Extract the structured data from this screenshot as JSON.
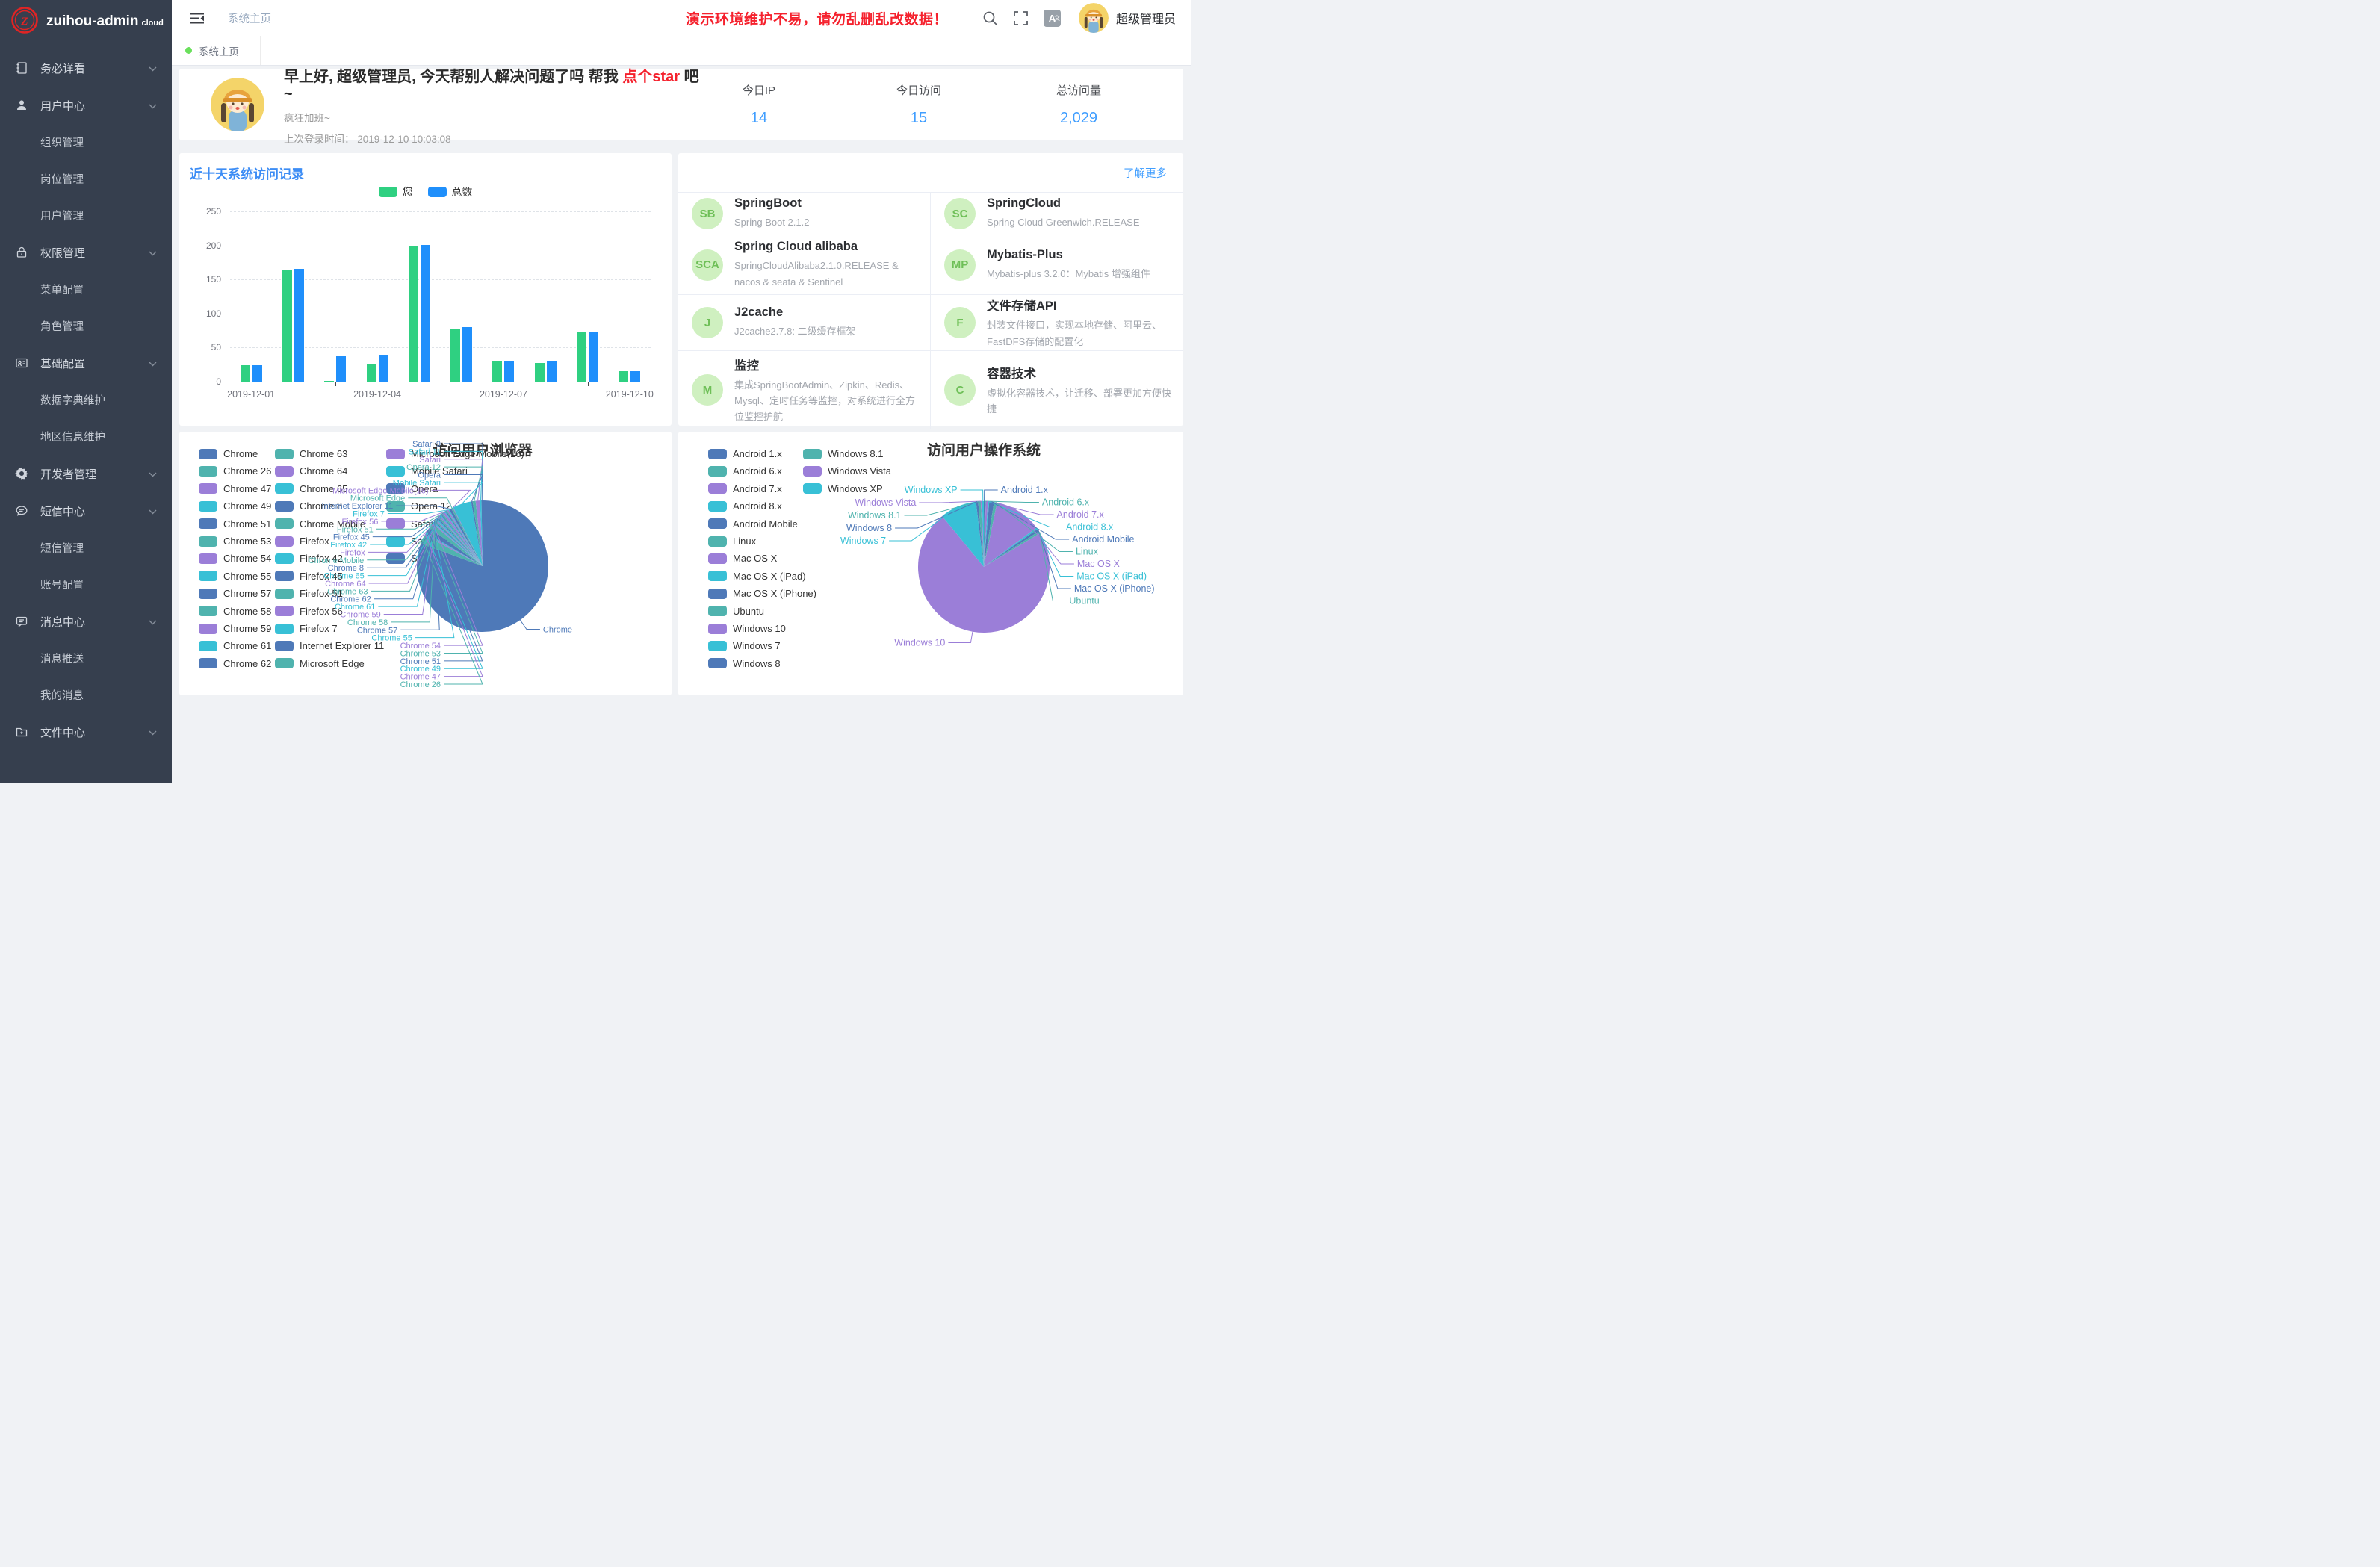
{
  "app": {
    "logo_letter": "Z",
    "title": "zuihou-admin",
    "title_suffix": "cloud"
  },
  "header": {
    "breadcrumb": "系统主页",
    "warning": "演示环境维护不易，请勿乱删乱改数据！",
    "username": "超级管理员",
    "icons": [
      "menu-fold-icon",
      "search-icon",
      "fullscreen-icon",
      "language-icon"
    ],
    "language_icon_text": "A文"
  },
  "tabs": [
    {
      "label": "系统主页",
      "active": true
    }
  ],
  "sidebar": {
    "items": [
      {
        "icon": "notebook-icon",
        "label": "务必详看",
        "children": []
      },
      {
        "icon": "user-icon",
        "label": "用户中心",
        "children": [
          "组织管理",
          "岗位管理",
          "用户管理"
        ]
      },
      {
        "icon": "lock-icon",
        "label": "权限管理",
        "children": [
          "菜单配置",
          "角色管理"
        ]
      },
      {
        "icon": "card-icon",
        "label": "基础配置",
        "children": [
          "数据字典维护",
          "地区信息维护"
        ]
      },
      {
        "icon": "gear-icon",
        "label": "开发者管理",
        "children": []
      },
      {
        "icon": "chat-icon",
        "label": "短信中心",
        "children": [
          "短信管理",
          "账号配置"
        ]
      },
      {
        "icon": "message-icon",
        "label": "消息中心",
        "children": [
          "消息推送",
          "我的消息"
        ]
      },
      {
        "icon": "folder-icon",
        "label": "文件中心",
        "children": []
      }
    ]
  },
  "greeting": {
    "title_prefix": "早上好, 超级管理员, 今天帮别人解决问题了吗 帮我 ",
    "star_link": "点个star",
    "title_suffix": " 吧~",
    "mood": "疯狂加班~",
    "last_login_label": "上次登录时间：",
    "last_login": "2019-12-10 10:03:08"
  },
  "stats": [
    {
      "label": "今日IP",
      "value": "14"
    },
    {
      "label": "今日访问",
      "value": "15"
    },
    {
      "label": "总访问量",
      "value": "2,029"
    }
  ],
  "bar_panel": {
    "title": "近十天系统访问记录",
    "chart_data": {
      "type": "bar",
      "categories": [
        "2019-12-01",
        "2019-12-02",
        "2019-12-03",
        "2019-12-04",
        "2019-12-05",
        "2019-12-06",
        "2019-12-07",
        "2019-12-08",
        "2019-12-09",
        "2019-12-10"
      ],
      "x_tick_labels_shown": [
        "2019-12-01",
        "2019-12-04",
        "2019-12-07",
        "2019-12-10"
      ],
      "series": [
        {
          "name": "您",
          "values": [
            24,
            165,
            1,
            25,
            198,
            78,
            31,
            27,
            72,
            15
          ]
        },
        {
          "name": "总数",
          "values": [
            24,
            166,
            38,
            40,
            201,
            80,
            31,
            31,
            72,
            15
          ]
        }
      ],
      "ylabel": "",
      "xlabel": "",
      "ylim": [
        0,
        250
      ],
      "y_ticks": [
        0,
        50,
        100,
        150,
        200,
        250
      ],
      "grid": "dashed"
    }
  },
  "tech_panel": {
    "more_link": "了解更多",
    "cards": [
      {
        "badge": "SB",
        "title": "SpringBoot",
        "desc": "Spring Boot 2.1.2"
      },
      {
        "badge": "SC",
        "title": "SpringCloud",
        "desc": "Spring Cloud Greenwich.RELEASE"
      },
      {
        "badge": "SCA",
        "title": "Spring Cloud alibaba",
        "desc": "SpringCloudAlibaba2.1.0.RELEASE & nacos & seata & Sentinel"
      },
      {
        "badge": "MP",
        "title": "Mybatis-Plus",
        "desc": "Mybatis-plus 3.2.0：Mybatis 增强组件"
      },
      {
        "badge": "J",
        "title": "J2cache",
        "desc": "J2cache2.7.8: 二级缓存框架"
      },
      {
        "badge": "F",
        "title": "文件存储API",
        "desc": "封装文件接口，实现本地存储、阿里云、FastDFS存储的配置化"
      },
      {
        "badge": "M",
        "title": "监控",
        "desc": "集成SpringBootAdmin、Zipkin、Redis、Mysql、定时任务等监控，对系统进行全方位监控护航"
      },
      {
        "badge": "C",
        "title": "容器技术",
        "desc": "虚拟化容器技术，让迁移、部署更加方便快捷"
      }
    ]
  },
  "browser_panel": {
    "title": "访问用户浏览器",
    "chart_data": {
      "type": "pie",
      "slices": [
        {
          "name": "Chrome",
          "value": 1526
        },
        {
          "name": "Chrome 26",
          "value": 42
        },
        {
          "name": "Chrome 47",
          "value": 9
        },
        {
          "name": "Chrome 49",
          "value": 5
        },
        {
          "name": "Chrome 51",
          "value": 26
        },
        {
          "name": "Chrome 53",
          "value": 24
        },
        {
          "name": "Chrome 54",
          "value": 5
        },
        {
          "name": "Chrome 55",
          "value": 6
        },
        {
          "name": "Chrome 57",
          "value": 5
        },
        {
          "name": "Chrome 58",
          "value": 5
        },
        {
          "name": "Chrome 59",
          "value": 5
        },
        {
          "name": "Chrome 61",
          "value": 6
        },
        {
          "name": "Chrome 62",
          "value": 6
        },
        {
          "name": "Chrome 63",
          "value": 7
        },
        {
          "name": "Chrome 64",
          "value": 6
        },
        {
          "name": "Chrome 65",
          "value": 5
        },
        {
          "name": "Chrome 8",
          "value": 4
        },
        {
          "name": "Chrome Mobile",
          "value": 7
        },
        {
          "name": "Firefox",
          "value": 10
        },
        {
          "name": "Firefox 42",
          "value": 4
        },
        {
          "name": "Firefox 45",
          "value": 5
        },
        {
          "name": "Firefox 51",
          "value": 4
        },
        {
          "name": "Firefox 56",
          "value": 6
        },
        {
          "name": "Firefox 7",
          "value": 4
        },
        {
          "name": "Internet Explorer 11",
          "value": 11
        },
        {
          "name": "Microsoft Edge",
          "value": 8
        },
        {
          "name": "Microsoft Edge Mobile(16)",
          "value": 3
        },
        {
          "name": "Mobile Safari",
          "value": 86
        },
        {
          "name": "Opera",
          "value": 7
        },
        {
          "name": "Opera 12",
          "value": 14
        },
        {
          "name": "Safari",
          "value": 20
        },
        {
          "name": "Safari 11",
          "value": 7
        },
        {
          "name": "Safari 9",
          "value": 5
        }
      ],
      "legend_position": "left",
      "legend_columns": 3
    }
  },
  "os_panel": {
    "title": "访问用户操作系统",
    "chart_data": {
      "type": "pie",
      "slices": [
        {
          "name": "Android 1.x",
          "value": 4
        },
        {
          "name": "Android 6.x",
          "value": 5
        },
        {
          "name": "Android 7.x",
          "value": 10
        },
        {
          "name": "Android 8.x",
          "value": 6
        },
        {
          "name": "Android Mobile",
          "value": 22
        },
        {
          "name": "Linux",
          "value": 14
        },
        {
          "name": "Mac OS X",
          "value": 218
        },
        {
          "name": "Mac OS X (iPad)",
          "value": 8
        },
        {
          "name": "Mac OS X (iPhone)",
          "value": 12
        },
        {
          "name": "Ubuntu",
          "value": 10
        },
        {
          "name": "Windows 10",
          "value": 1370
        },
        {
          "name": "Windows 7",
          "value": 170
        },
        {
          "name": "Windows 8",
          "value": 10
        },
        {
          "name": "Windows 8.1",
          "value": 12
        },
        {
          "name": "Windows Vista",
          "value": 6
        },
        {
          "name": "Windows XP",
          "value": 8
        }
      ],
      "legend_position": "left",
      "legend_columns": 2
    }
  },
  "colors": {
    "accent": "#409eff",
    "warning_red": "#f5212d",
    "sidebar_bg": "#363f4e",
    "bar_green": "#2fd081",
    "bar_blue": "#1f8ffb",
    "pie_palette": [
      "#4e79b8",
      "#4fb3ae",
      "#9b7ed8",
      "#38c0d6"
    ],
    "badge_bg": "#cff0c0",
    "badge_text": "#6ebf57",
    "tab_dot_green": "#6ae05c"
  }
}
